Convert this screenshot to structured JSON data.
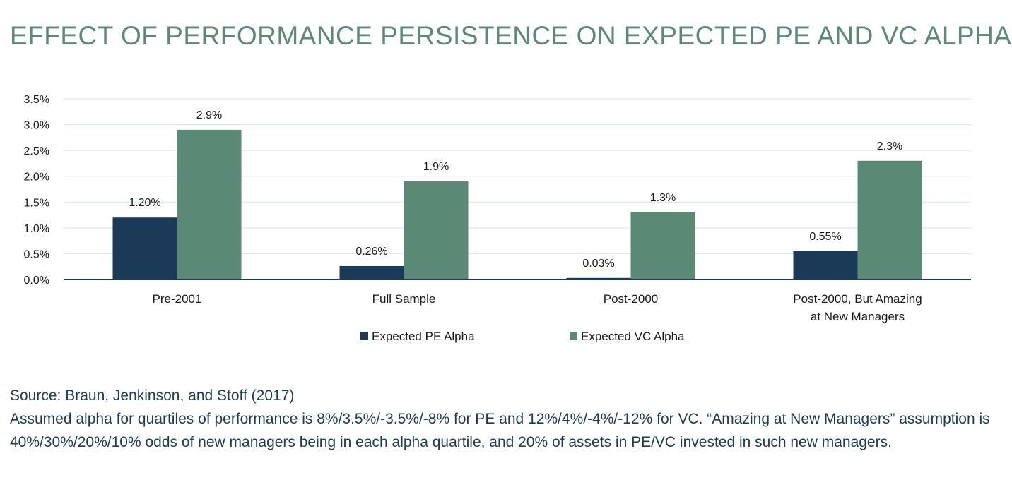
{
  "title": "EFFECT OF PERFORMANCE PERSISTENCE ON EXPECTED PE AND VC ALPHA",
  "colors": {
    "title": "#5a8a76",
    "pe": "#1b3a57",
    "vc": "#5a8a76",
    "notes": "#1d3a57"
  },
  "chart_data": {
    "type": "bar",
    "categories": [
      [
        "Pre-2001"
      ],
      [
        "Full Sample"
      ],
      [
        "Post-2000"
      ],
      [
        "Post-2000, But Amazing",
        "at New Managers"
      ]
    ],
    "series": [
      {
        "name": "Expected PE Alpha",
        "values": [
          1.2,
          0.26,
          0.03,
          0.55
        ],
        "labels": [
          "1.20%",
          "0.26%",
          "0.03%",
          "0.55%"
        ]
      },
      {
        "name": "Expected VC Alpha",
        "values": [
          2.9,
          1.9,
          1.3,
          2.3
        ],
        "labels": [
          "2.9%",
          "1.9%",
          "1.3%",
          "2.3%"
        ]
      }
    ],
    "ylim": [
      0,
      3.5
    ],
    "yticks": [
      "0.0%",
      "0.5%",
      "1.0%",
      "1.5%",
      "2.0%",
      "2.5%",
      "3.0%",
      "3.5%"
    ],
    "grid": true,
    "legend": "bottom-center"
  },
  "notes": {
    "source": "Source: Braun, Jenkinson, and Stoff (2017)",
    "assumption": "Assumed alpha for quartiles of performance is 8%/3.5%/-3.5%/-8% for PE and 12%/4%/-4%/-12% for VC. “Amazing at New Managers” assumption is 40%/30%/20%/10% odds of new managers being in each alpha quartile, and 20% of assets in PE/VC invested in such new managers."
  }
}
